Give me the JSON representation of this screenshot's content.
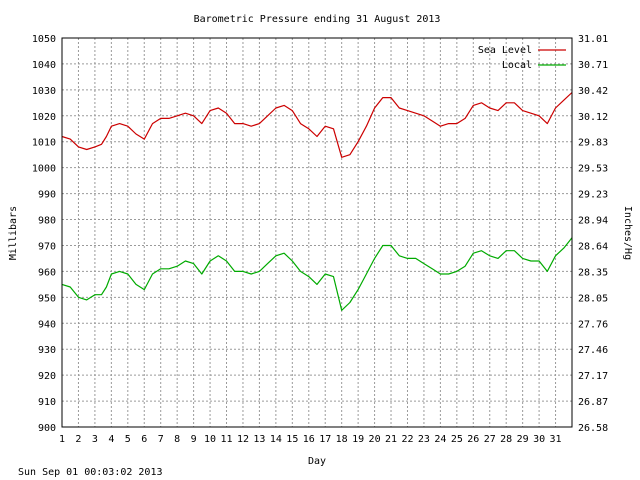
{
  "chart_data": {
    "type": "line",
    "title": "Barometric Pressure ending 31 August 2013",
    "xlabel": "Day",
    "ylabel": "Millibars",
    "ylabel_right": "Inches/Hg",
    "footer": "Sun Sep 01 00:03:02 2013",
    "xlim": [
      1,
      32
    ],
    "ylim": [
      900,
      1050
    ],
    "x_ticks": [
      "1",
      "2",
      "3",
      "4",
      "5",
      "6",
      "7",
      "8",
      "9",
      "10",
      "11",
      "12",
      "13",
      "14",
      "15",
      "16",
      "17",
      "18",
      "19",
      "20",
      "21",
      "22",
      "23",
      "24",
      "25",
      "26",
      "27",
      "28",
      "29",
      "30",
      "31"
    ],
    "y_ticks": [
      900,
      910,
      920,
      930,
      940,
      950,
      960,
      970,
      980,
      990,
      1000,
      1010,
      1020,
      1030,
      1040,
      1050
    ],
    "y_ticks_right": [
      "26.58",
      "26.87",
      "27.17",
      "27.46",
      "27.76",
      "28.05",
      "28.35",
      "28.64",
      "28.94",
      "29.23",
      "29.53",
      "29.83",
      "30.12",
      "30.42",
      "30.71",
      "31.01"
    ],
    "grid": true,
    "legend_position": "top-right",
    "colors": {
      "sea_level": "#cc0000",
      "local": "#00aa00",
      "grid": "#9a9a9a"
    },
    "series": [
      {
        "name": "Sea Level",
        "x": [
          1,
          1.5,
          2,
          2.5,
          3,
          3.4,
          3.7,
          4,
          4.5,
          5,
          5.5,
          6,
          6.5,
          7,
          7.5,
          8,
          8.5,
          9,
          9.5,
          10,
          10.5,
          11,
          11.5,
          12,
          12.5,
          13,
          13.5,
          14,
          14.5,
          15,
          15.5,
          16,
          16.5,
          17,
          17.5,
          18,
          18.5,
          19,
          19.5,
          20,
          20.5,
          21,
          21.5,
          22,
          22.5,
          23,
          23.5,
          24,
          24.5,
          25,
          25.5,
          26,
          26.5,
          27,
          27.5,
          28,
          28.5,
          29,
          29.5,
          30,
          30.5,
          31,
          31.5,
          32
        ],
        "values": [
          1012,
          1011,
          1008,
          1007,
          1008,
          1009,
          1012,
          1016,
          1017,
          1016,
          1013,
          1011,
          1017,
          1019,
          1019,
          1020,
          1021,
          1020,
          1017,
          1022,
          1023,
          1021,
          1017,
          1017,
          1016,
          1017,
          1020,
          1023,
          1024,
          1022,
          1017,
          1015,
          1012,
          1016,
          1015,
          1004,
          1005,
          1010,
          1016,
          1023,
          1027,
          1027,
          1023,
          1022,
          1021,
          1020,
          1018,
          1016,
          1017,
          1017,
          1019,
          1024,
          1025,
          1023,
          1022,
          1025,
          1025,
          1022,
          1021,
          1020,
          1017,
          1023,
          1026,
          1029
        ]
      },
      {
        "name": "Local",
        "x": [
          1,
          1.5,
          2,
          2.5,
          3,
          3.4,
          3.7,
          4,
          4.5,
          5,
          5.5,
          6,
          6.5,
          7,
          7.5,
          8,
          8.5,
          9,
          9.5,
          10,
          10.5,
          11,
          11.5,
          12,
          12.5,
          13,
          13.5,
          14,
          14.5,
          15,
          15.5,
          16,
          16.5,
          17,
          17.5,
          18,
          18.5,
          19,
          19.5,
          20,
          20.5,
          21,
          21.5,
          22,
          22.5,
          23,
          23.5,
          24,
          24.5,
          25,
          25.5,
          26,
          26.5,
          27,
          27.5,
          28,
          28.5,
          29,
          29.5,
          30,
          30.5,
          31,
          31.5,
          32
        ],
        "values": [
          955,
          954,
          950,
          949,
          951,
          951,
          954,
          959,
          960,
          959,
          955,
          953,
          959,
          961,
          961,
          962,
          964,
          963,
          959,
          964,
          966,
          964,
          960,
          960,
          959,
          960,
          963,
          966,
          967,
          964,
          960,
          958,
          955,
          959,
          958,
          945,
          948,
          953,
          959,
          965,
          970,
          970,
          966,
          965,
          965,
          963,
          961,
          959,
          959,
          960,
          962,
          967,
          968,
          966,
          965,
          968,
          968,
          965,
          964,
          964,
          960,
          966,
          969,
          973
        ]
      }
    ]
  }
}
